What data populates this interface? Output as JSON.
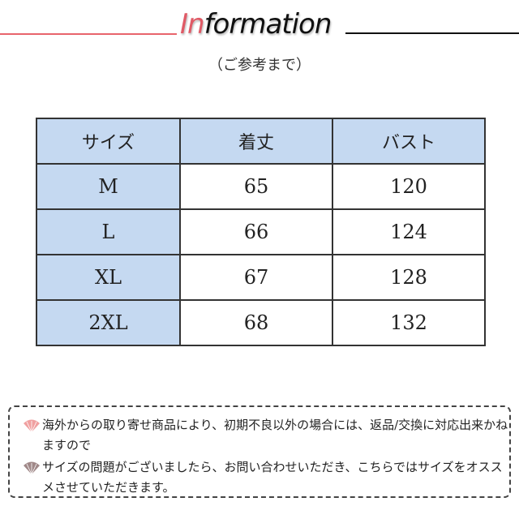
{
  "header": {
    "title_accent": "In",
    "title_rest": "formation",
    "subtitle": "（ご参考まで）"
  },
  "table": {
    "headers": [
      "サイズ",
      "着丈",
      "バスト"
    ],
    "rows": [
      [
        "M",
        "65",
        "120"
      ],
      [
        "L",
        "66",
        "124"
      ],
      [
        "XL",
        "67",
        "128"
      ],
      [
        "2XL",
        "68",
        "132"
      ]
    ]
  },
  "notes": [
    {
      "icon": "fan-icon",
      "color": "#f0a0a0",
      "text": "海外からの取り寄せ商品により、初期不良以外の場合には、返品/交換に対応出来かねますので"
    },
    {
      "icon": "fan-icon",
      "color": "#a08888",
      "text": "サイズの問題がございましたら、お問い合わせいただき、こちらではサイズをオススメさせていただきます。"
    }
  ]
}
